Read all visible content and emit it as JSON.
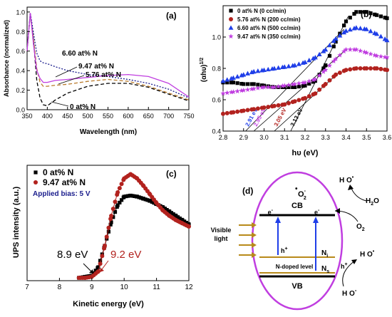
{
  "colors": {
    "black": "#000000",
    "red": "#b2221e",
    "blue": "#1f3ee8",
    "purple": "#c03ee0",
    "orange": "#b97a2a",
    "gold": "#b88a1a",
    "darkblue": "#1a1d8c"
  },
  "chart_data": [
    {
      "id": "a",
      "panel_label": "(a)",
      "type": "line",
      "xlabel": "Wavelength (nm)",
      "ylabel": "Absorbance (normalized)",
      "xlim": [
        350,
        750
      ],
      "ylim": [
        0.0,
        1.05
      ],
      "xticks": [
        "350",
        "400",
        "450",
        "500",
        "550",
        "600",
        "650",
        "700",
        "750"
      ],
      "yticks": [
        "0.0",
        "0.2",
        "0.4",
        "0.6",
        "0.8",
        "1.0"
      ],
      "annotations": [
        "6.60 at% N",
        "9.47 at% N",
        "5.76 at% N",
        "0 at% N"
      ],
      "series": [
        {
          "name": "0 at% N",
          "color": "#000000",
          "style": "dashed",
          "x": [
            350,
            358,
            366,
            374,
            382,
            390,
            400,
            420,
            450,
            500,
            550,
            600,
            650,
            700,
            750
          ],
          "y": [
            0.6,
            0.99,
            0.7,
            0.3,
            0.12,
            0.05,
            0.04,
            0.1,
            0.17,
            0.24,
            0.27,
            0.27,
            0.23,
            0.16,
            0.09
          ]
        },
        {
          "name": "5.76 at% N",
          "color": "#b97a2a",
          "style": "dashed",
          "x": [
            350,
            358,
            366,
            374,
            382,
            390,
            400,
            420,
            450,
            500,
            550,
            600,
            650,
            700,
            750
          ],
          "y": [
            0.6,
            0.98,
            0.72,
            0.42,
            0.28,
            0.24,
            0.24,
            0.25,
            0.26,
            0.29,
            0.31,
            0.29,
            0.24,
            0.17,
            0.1
          ]
        },
        {
          "name": "6.60 at% N",
          "color": "#1a1d8c",
          "style": "dotted",
          "x": [
            350,
            358,
            366,
            374,
            382,
            390,
            400,
            420,
            450,
            500,
            550,
            600,
            650,
            700,
            750
          ],
          "y": [
            0.62,
            0.99,
            0.78,
            0.58,
            0.5,
            0.48,
            0.47,
            0.44,
            0.4,
            0.36,
            0.34,
            0.31,
            0.27,
            0.21,
            0.12
          ]
        },
        {
          "name": "9.47 at% N",
          "color": "#c03ee0",
          "style": "solid",
          "x": [
            350,
            358,
            366,
            374,
            382,
            390,
            400,
            420,
            450,
            500,
            550,
            600,
            650,
            700,
            750
          ],
          "y": [
            0.6,
            0.99,
            0.66,
            0.4,
            0.32,
            0.28,
            0.28,
            0.3,
            0.31,
            0.33,
            0.35,
            0.36,
            0.34,
            0.27,
            0.13
          ]
        }
      ]
    },
    {
      "id": "b",
      "panel_label": "(b)",
      "type": "scatter",
      "xlabel": "hυ (eV)",
      "ylabel": "(αhυ)",
      "ylabel_sup": "1/2",
      "xlim": [
        2.8,
        3.6
      ],
      "ylim": [
        0.4,
        1.2
      ],
      "xticks": [
        "2.8",
        "2.9",
        "3.0",
        "3.1",
        "3.2",
        "3.3",
        "3.4",
        "3.5",
        "3.6"
      ],
      "yticks": [
        "0.4",
        "0.6",
        "0.8",
        "1.0"
      ],
      "legend": "top-left",
      "series": [
        {
          "name": "0 at% N (0 cc/min)",
          "color": "#000000",
          "marker": "square",
          "x": [
            2.8,
            2.85,
            2.9,
            2.95,
            3.0,
            3.05,
            3.1,
            3.15,
            3.2,
            3.25,
            3.3,
            3.35,
            3.4,
            3.45,
            3.5,
            3.55,
            3.6
          ],
          "y": [
            0.71,
            0.71,
            0.7,
            0.7,
            0.69,
            0.68,
            0.68,
            0.68,
            0.69,
            0.72,
            0.82,
            0.97,
            1.1,
            1.16,
            1.16,
            1.14,
            1.12
          ]
        },
        {
          "name": "5.76 at% N (200 cc/min)",
          "color": "#b2221e",
          "marker": "circle",
          "x": [
            2.8,
            2.85,
            2.9,
            2.95,
            3.0,
            3.05,
            3.1,
            3.15,
            3.2,
            3.25,
            3.3,
            3.35,
            3.4,
            3.45,
            3.5,
            3.55,
            3.6
          ],
          "y": [
            0.51,
            0.52,
            0.53,
            0.54,
            0.55,
            0.56,
            0.57,
            0.59,
            0.61,
            0.64,
            0.7,
            0.76,
            0.79,
            0.8,
            0.8,
            0.8,
            0.79
          ]
        },
        {
          "name": "6.60 at% N (500 cc/min)",
          "color": "#1f3ee8",
          "marker": "triangle",
          "x": [
            2.8,
            2.85,
            2.9,
            2.95,
            3.0,
            3.05,
            3.1,
            3.15,
            3.2,
            3.25,
            3.3,
            3.35,
            3.4,
            3.45,
            3.5,
            3.55,
            3.6
          ],
          "y": [
            0.72,
            0.74,
            0.76,
            0.78,
            0.79,
            0.8,
            0.81,
            0.82,
            0.84,
            0.87,
            0.92,
            0.99,
            1.04,
            1.06,
            1.05,
            1.02,
            0.98
          ]
        },
        {
          "name": "9.47 at% N (350 cc/min)",
          "color": "#c03ee0",
          "marker": "star",
          "x": [
            2.8,
            2.85,
            2.9,
            2.95,
            3.0,
            3.05,
            3.1,
            3.15,
            3.2,
            3.25,
            3.3,
            3.35,
            3.4,
            3.45,
            3.5,
            3.55,
            3.6
          ],
          "y": [
            0.64,
            0.65,
            0.66,
            0.67,
            0.68,
            0.68,
            0.69,
            0.7,
            0.71,
            0.73,
            0.79,
            0.86,
            0.92,
            0.92,
            0.9,
            0.88,
            0.87
          ]
        }
      ],
      "fit_lines": [
        {
          "label": "2.91 eV",
          "color": "#1f3ee8",
          "x": [
            2.91,
            3.39
          ],
          "y": [
            0.4,
            1.05
          ]
        },
        {
          "label": "2.95 eV",
          "color": "#c03ee0",
          "x": [
            2.95,
            3.4
          ],
          "y": [
            0.4,
            0.92
          ]
        },
        {
          "label": "3.05 eV",
          "color": "#b2221e",
          "x": [
            3.05,
            3.37
          ],
          "y": [
            0.4,
            0.78
          ]
        },
        {
          "label": "3.13 eV",
          "color": "#000000",
          "x": [
            3.13,
            3.41
          ],
          "y": [
            0.4,
            1.13
          ]
        }
      ]
    },
    {
      "id": "c",
      "panel_label": "(c)",
      "type": "scatter",
      "xlabel": "Kinetic energy (eV)",
      "ylabel": "UPS intensity (a.u.)",
      "xlim": [
        7,
        12
      ],
      "xticks": [
        "7",
        "8",
        "9",
        "10",
        "11",
        "12"
      ],
      "legend": "top-left",
      "annotation": "Applied bias: 5 V",
      "series": [
        {
          "name": "0 at% N",
          "color": "#000000",
          "marker": "square",
          "x": [
            8.6,
            8.8,
            9.0,
            9.2,
            9.4,
            9.6,
            9.8,
            10.0,
            10.2,
            10.4,
            10.6,
            10.8,
            11.0,
            11.2,
            11.4,
            11.6,
            11.8,
            12.0
          ],
          "y": [
            0.0,
            0.01,
            0.02,
            0.1,
            0.3,
            0.52,
            0.68,
            0.76,
            0.77,
            0.76,
            0.74,
            0.72,
            0.69,
            0.66,
            0.62,
            0.58,
            0.54,
            0.5
          ]
        },
        {
          "name": "9.47 at% N",
          "color": "#b2221e",
          "marker": "circle",
          "x": [
            8.6,
            8.8,
            9.0,
            9.2,
            9.4,
            9.6,
            9.8,
            10.0,
            10.2,
            10.4,
            10.6,
            10.8,
            11.0,
            11.2,
            11.4,
            11.6,
            11.8,
            12.0
          ],
          "y": [
            0.0,
            0.0,
            0.01,
            0.06,
            0.3,
            0.58,
            0.8,
            0.93,
            0.97,
            0.93,
            0.86,
            0.78,
            0.7,
            0.63,
            0.58,
            0.54,
            0.51,
            0.48
          ]
        }
      ],
      "onsets": [
        {
          "label": "8.9 eV",
          "color": "#000000",
          "x": 8.9
        },
        {
          "label": "9.2 eV",
          "color": "#b2221e",
          "x": 9.2
        }
      ]
    }
  ],
  "diagram": {
    "panel_label": "(d)",
    "cb": "CB",
    "vb": "VB",
    "doped": "N-doped level",
    "ni": "N",
    "ni_sub": "i",
    "ns": "N",
    "ns_sub": "s",
    "visible": [
      "Visible",
      "light"
    ],
    "e_minus": "e",
    "h_plus": "h",
    "o2": "O",
    "o2_sub": "2",
    "o2m": "O",
    "o2m_sub": "2",
    "o2m_sup": "-",
    "h2o": "H",
    "h2o_sub": "2",
    "h2o_o": "O",
    "ho": "H O",
    "hom": "H O",
    "hom_sup": "-"
  }
}
